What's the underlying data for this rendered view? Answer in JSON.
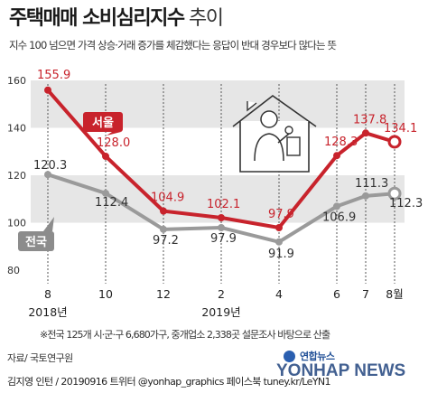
{
  "header": {
    "title_bold": "주택매매 소비심리지수",
    "title_thin": " 추이",
    "subtitle": "지수 100 넘으면 가격 상승·거래 증가를 체감했다는 응답이 반대 경우보다 많다는 뜻"
  },
  "chart_data": {
    "type": "line",
    "x": [
      "8",
      "10",
      "12",
      "2",
      "4",
      "6",
      "7",
      "8월"
    ],
    "year_labels": [
      {
        "label": "2018년",
        "under": "8"
      },
      {
        "label": "2019년",
        "under": "2"
      }
    ],
    "ylim": [
      80,
      160
    ],
    "yticks": [
      80,
      100,
      120,
      140,
      160
    ],
    "grid": true,
    "series": [
      {
        "name": "서울",
        "color": "#c8232c",
        "values": [
          155.9,
          128.0,
          104.9,
          102.1,
          97.9,
          128.3,
          137.8,
          134.1
        ],
        "labels": [
          "155.9",
          "128.0",
          "104.9",
          "102.1",
          "97.9",
          "128.3",
          "137.8",
          "134.1"
        ]
      },
      {
        "name": "전국",
        "color": "#9a9a9a",
        "values": [
          120.3,
          112.4,
          97.2,
          97.9,
          91.9,
          106.9,
          111.3,
          112.3
        ],
        "labels": [
          "120.3",
          "112.4",
          "97.2",
          "97.9",
          "91.9",
          "106.9",
          "111.3",
          "112.3"
        ]
      }
    ]
  },
  "footer": {
    "note": "※전국 125개 시·군·구 6,680가구, 중개업소 2,338곳 설문조사 바탕으로 산출",
    "source": "자료/ 국토연구원",
    "credit": "김지영 인턴 / 20190916 트위터 @yonhap_graphics 페이스북 tuney.kr/LeYN1",
    "logo_top": "연합뉴스",
    "logo_main": "YONHAP NEWS"
  },
  "colors": {
    "seoul": "#c8232c",
    "national": "#9a9a9a",
    "band": "#e6e6e6"
  }
}
